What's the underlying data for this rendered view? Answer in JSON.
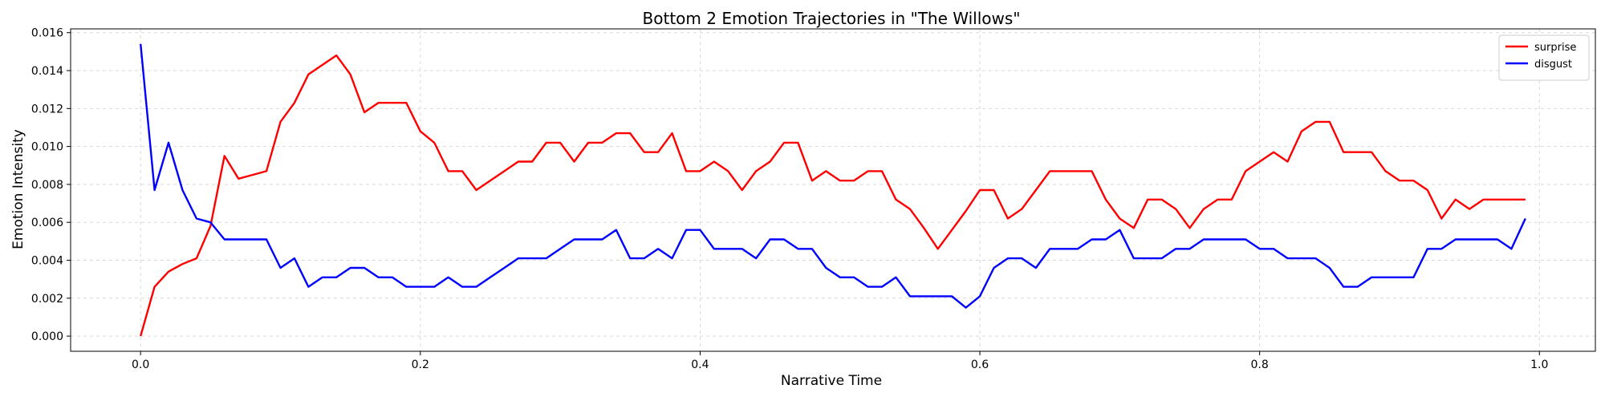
{
  "chart_data": {
    "type": "line",
    "title": "Bottom 2 Emotion Trajectories in \"The Willows\"",
    "xlabel": "Narrative Time",
    "ylabel": "Emotion Intensity",
    "xlim": [
      -0.05,
      1.04
    ],
    "ylim": [
      -0.0008,
      0.0162
    ],
    "xticks": [
      0.0,
      0.2,
      0.4,
      0.6,
      0.8,
      1.0
    ],
    "xtick_labels": [
      "0.0",
      "0.2",
      "0.4",
      "0.6",
      "0.8",
      "1.0"
    ],
    "yticks": [
      0.0,
      0.002,
      0.004,
      0.006,
      0.008,
      0.01,
      0.012,
      0.014,
      0.016
    ],
    "ytick_labels": [
      "0.000",
      "0.002",
      "0.004",
      "0.006",
      "0.008",
      "0.010",
      "0.012",
      "0.014",
      "0.016"
    ],
    "grid": true,
    "legend_position": "top-right",
    "x": [
      0.0,
      0.01,
      0.02,
      0.03,
      0.04,
      0.05,
      0.06,
      0.07,
      0.08,
      0.09,
      0.1,
      0.11,
      0.12,
      0.13,
      0.14,
      0.15,
      0.16,
      0.17,
      0.18,
      0.19,
      0.2,
      0.21,
      0.22,
      0.23,
      0.24,
      0.25,
      0.26,
      0.27,
      0.28,
      0.29,
      0.3,
      0.31,
      0.32,
      0.33,
      0.34,
      0.35,
      0.36,
      0.37,
      0.38,
      0.39,
      0.4,
      0.41,
      0.42,
      0.43,
      0.44,
      0.45,
      0.46,
      0.47,
      0.48,
      0.49,
      0.5,
      0.51,
      0.52,
      0.53,
      0.54,
      0.55,
      0.56,
      0.57,
      0.58,
      0.59,
      0.6,
      0.61,
      0.62,
      0.63,
      0.64,
      0.65,
      0.66,
      0.67,
      0.68,
      0.69,
      0.7,
      0.71,
      0.72,
      0.73,
      0.74,
      0.75,
      0.76,
      0.77,
      0.78,
      0.79,
      0.8,
      0.81,
      0.82,
      0.83,
      0.84,
      0.85,
      0.86,
      0.87,
      0.88,
      0.89,
      0.9,
      0.91,
      0.92,
      0.93,
      0.94,
      0.95,
      0.96,
      0.97,
      0.98,
      0.99
    ],
    "series": [
      {
        "name": "surprise",
        "color": "#ff0000",
        "values": [
          0.0,
          0.0026,
          0.0034,
          0.0038,
          0.0041,
          0.0058,
          0.0095,
          0.0083,
          0.0085,
          0.0087,
          0.0113,
          0.0123,
          0.0138,
          0.0143,
          0.0148,
          0.0138,
          0.0118,
          0.0123,
          0.0123,
          0.0123,
          0.0108,
          0.0102,
          0.0087,
          0.0087,
          0.0077,
          0.0082,
          0.0087,
          0.0092,
          0.0092,
          0.0102,
          0.0102,
          0.0092,
          0.0102,
          0.0102,
          0.0107,
          0.0107,
          0.0097,
          0.0097,
          0.0107,
          0.0087,
          0.0087,
          0.0092,
          0.0087,
          0.0077,
          0.0087,
          0.0092,
          0.0102,
          0.0102,
          0.0082,
          0.0087,
          0.0082,
          0.0082,
          0.0087,
          0.0087,
          0.0072,
          0.0067,
          0.0057,
          0.0046,
          0.0056,
          0.0066,
          0.0077,
          0.0077,
          0.0062,
          0.0067,
          0.0077,
          0.0087,
          0.0087,
          0.0087,
          0.0087,
          0.0072,
          0.0062,
          0.0057,
          0.0072,
          0.0072,
          0.0067,
          0.0057,
          0.0067,
          0.0072,
          0.0072,
          0.0087,
          0.0092,
          0.0097,
          0.0092,
          0.0108,
          0.0113,
          0.0113,
          0.0097,
          0.0097,
          0.0097,
          0.0087,
          0.0082,
          0.0082,
          0.0077,
          0.0062,
          0.0072,
          0.0067,
          0.0072,
          0.0072,
          0.0072,
          0.0072
        ]
      },
      {
        "name": "disgust",
        "color": "#0000ff",
        "values": [
          0.0154,
          0.0077,
          0.0102,
          0.0077,
          0.0062,
          0.006,
          0.0051,
          0.0051,
          0.0051,
          0.0051,
          0.0036,
          0.0041,
          0.0026,
          0.0031,
          0.0031,
          0.0036,
          0.0036,
          0.0031,
          0.0031,
          0.0026,
          0.0026,
          0.0026,
          0.0031,
          0.0026,
          0.0026,
          0.0031,
          0.0036,
          0.0041,
          0.0041,
          0.0041,
          0.0046,
          0.0051,
          0.0051,
          0.0051,
          0.0056,
          0.0041,
          0.0041,
          0.0046,
          0.0041,
          0.0056,
          0.0056,
          0.0046,
          0.0046,
          0.0046,
          0.0041,
          0.0051,
          0.0051,
          0.0046,
          0.0046,
          0.0036,
          0.0031,
          0.0031,
          0.0026,
          0.0026,
          0.0031,
          0.0021,
          0.0021,
          0.0021,
          0.0021,
          0.0015,
          0.0021,
          0.0036,
          0.0041,
          0.0041,
          0.0036,
          0.0046,
          0.0046,
          0.0046,
          0.0051,
          0.0051,
          0.0056,
          0.0041,
          0.0041,
          0.0041,
          0.0046,
          0.0046,
          0.0051,
          0.0051,
          0.0051,
          0.0051,
          0.0046,
          0.0046,
          0.0041,
          0.0041,
          0.0041,
          0.0036,
          0.0026,
          0.0026,
          0.0031,
          0.0031,
          0.0031,
          0.0031,
          0.0046,
          0.0046,
          0.0051,
          0.0051,
          0.0051,
          0.0051,
          0.0046,
          0.0062
        ]
      }
    ]
  }
}
